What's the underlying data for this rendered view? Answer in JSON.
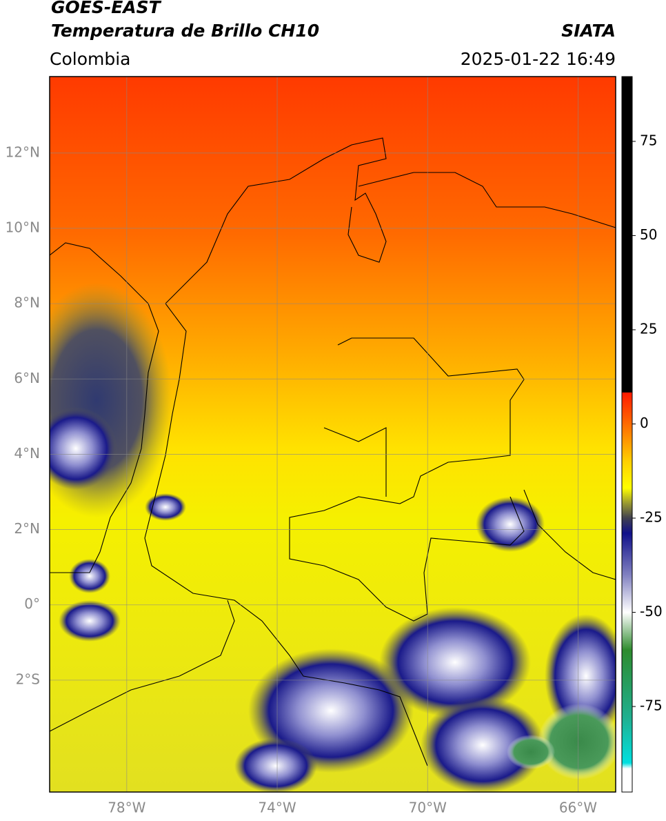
{
  "header": {
    "title": "GOES-EAST",
    "subtitle": "Temperatura de Brillo CH10",
    "source": "SIATA",
    "region": "Colombia",
    "timestamp": "2025-01-22 16:49"
  },
  "map": {
    "xlim": [
      -80.05,
      -65.0
    ],
    "ylim": [
      -4.97,
      14.03
    ],
    "xticks": [
      {
        "value": -78,
        "label": "78°W"
      },
      {
        "value": -74,
        "label": "74°W"
      },
      {
        "value": -70,
        "label": "70°W"
      },
      {
        "value": -66,
        "label": "66°W"
      }
    ],
    "yticks": [
      {
        "value": 12,
        "label": "12°N"
      },
      {
        "value": 10,
        "label": "10°N"
      },
      {
        "value": 8,
        "label": "8°N"
      },
      {
        "value": 6,
        "label": "6°N"
      },
      {
        "value": 4,
        "label": "4°N"
      },
      {
        "value": 2,
        "label": "2°N"
      },
      {
        "value": 0,
        "label": "0°"
      },
      {
        "value": -2,
        "label": "2°S"
      }
    ],
    "grid": true
  },
  "colorbar": {
    "lim": [
      -97.7,
      92.2
    ],
    "ticks": [
      75,
      50,
      25,
      0,
      -25,
      -50,
      -75
    ],
    "colorscale": [
      {
        "value": 92.2,
        "color": "#000000"
      },
      {
        "value": 8.4,
        "color": "#000000"
      },
      {
        "value": 8.3,
        "color": "#ff1a00"
      },
      {
        "value": 0,
        "color": "#ff6a00"
      },
      {
        "value": -10,
        "color": "#ffd000"
      },
      {
        "value": -17,
        "color": "#ffff00"
      },
      {
        "value": -21,
        "color": "#9a9a30"
      },
      {
        "value": -25,
        "color": "#404050"
      },
      {
        "value": -29,
        "color": "#10108a"
      },
      {
        "value": -40,
        "color": "#8080c0"
      },
      {
        "value": -50,
        "color": "#ffffff"
      },
      {
        "value": -60,
        "color": "#2e8b2e"
      },
      {
        "value": -78,
        "color": "#20b090"
      },
      {
        "value": -90,
        "color": "#00e0e0"
      },
      {
        "value": -91.5,
        "color": "#ffffff"
      },
      {
        "value": -97.7,
        "color": "#ffffff"
      }
    ]
  }
}
